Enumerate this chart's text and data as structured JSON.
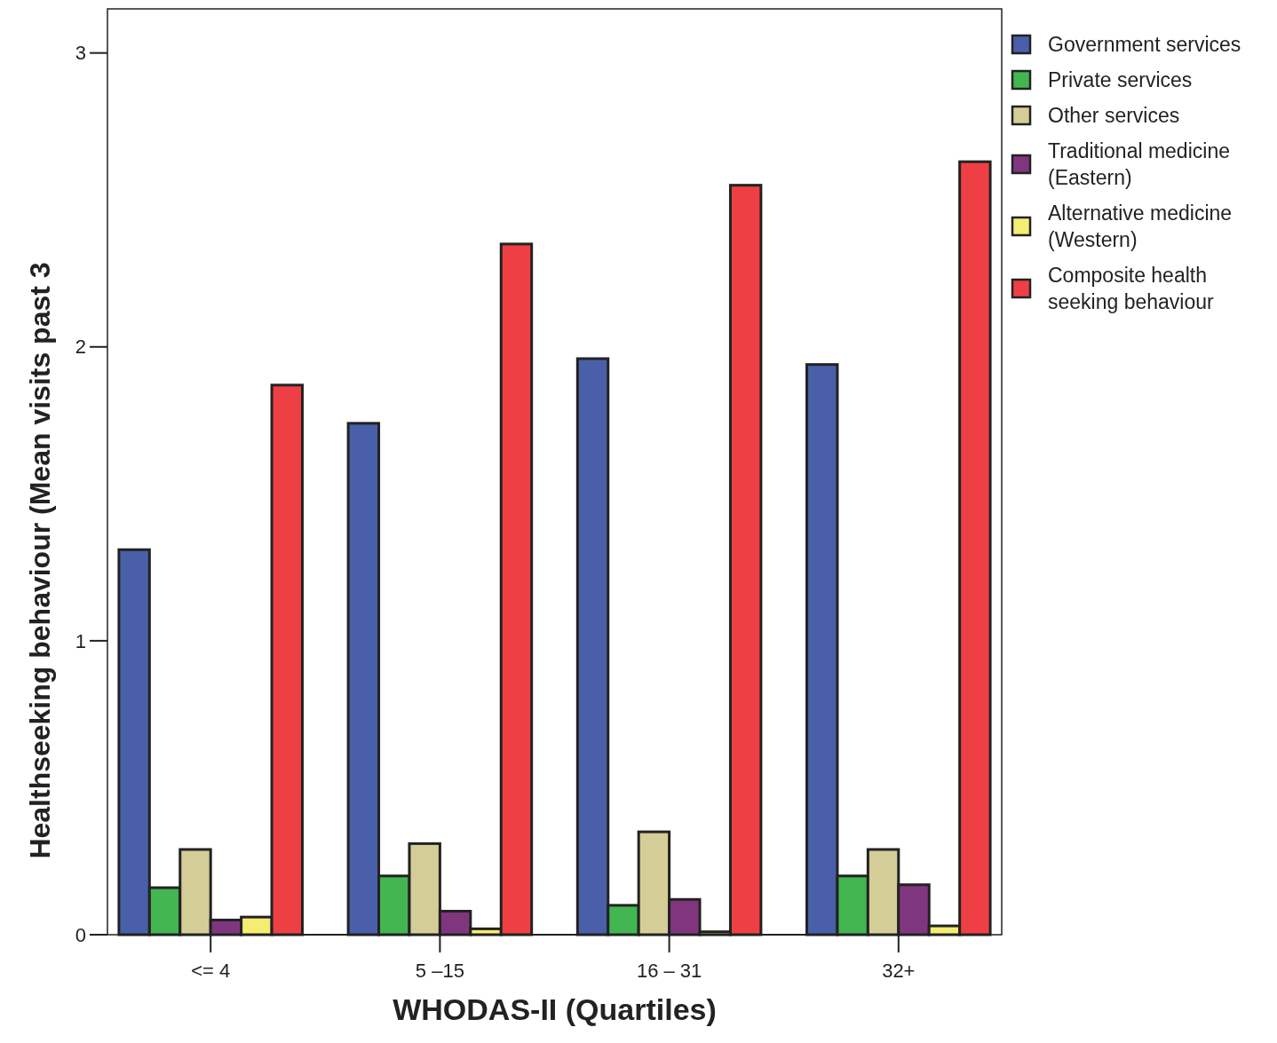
{
  "chart_data": {
    "type": "bar",
    "xlabel": "WHODAS-II (Quartiles)",
    "ylabel": "Healthseeking behaviour (Mean visits past 3",
    "categories": [
      "<= 4",
      "5 –15",
      "16 – 31",
      "32+"
    ],
    "series": [
      {
        "name": "Government services",
        "color": "#4a5fa9",
        "values": [
          1.31,
          1.74,
          1.96,
          1.94
        ]
      },
      {
        "name": "Private services",
        "color": "#43b551",
        "values": [
          0.16,
          0.2,
          0.1,
          0.2
        ]
      },
      {
        "name": "Other services",
        "color": "#d4cd97",
        "values": [
          0.29,
          0.31,
          0.35,
          0.29
        ]
      },
      {
        "name": "Traditional medicine (Eastern)",
        "color": "#80367f",
        "values": [
          0.05,
          0.08,
          0.12,
          0.17
        ]
      },
      {
        "name": "Alternative medicine (Western)",
        "color": "#f5ec72",
        "values": [
          0.06,
          0.02,
          0.01,
          0.03
        ]
      },
      {
        "name": "Composite health seeking behaviour",
        "color": "#ee4044",
        "values": [
          1.87,
          2.35,
          2.55,
          2.63
        ]
      }
    ],
    "ylim": [
      0,
      3.15
    ],
    "yticks": [
      0,
      1,
      2,
      3
    ],
    "grid": false,
    "legend": "right"
  }
}
